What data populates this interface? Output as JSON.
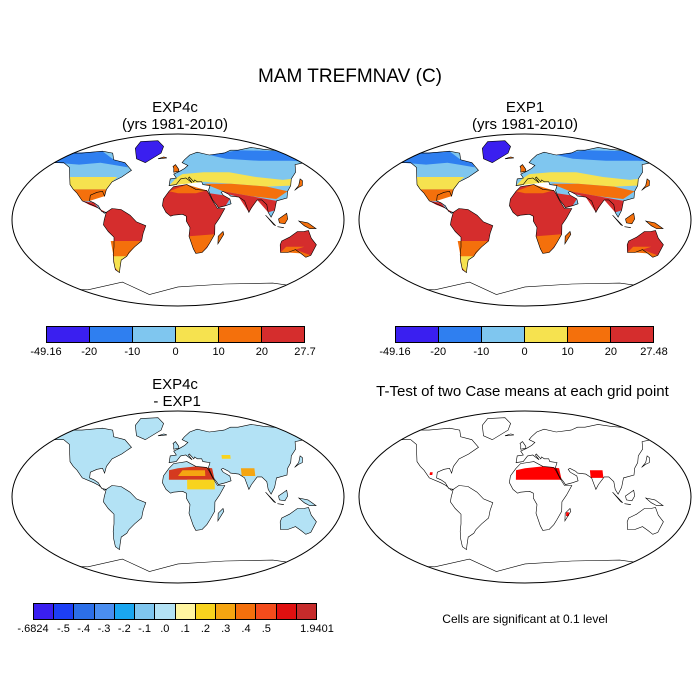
{
  "figure": {
    "main_title": "MAM TREFMNAV (C)",
    "panels": [
      {
        "id": "exp4c",
        "title_line1": "EXP4c",
        "title_line2": "(yrs 1981-2010)"
      },
      {
        "id": "exp1",
        "title_line1": "EXP1",
        "title_line2": "(yrs 1981-2010)"
      },
      {
        "id": "diff",
        "title_line1": "EXP4c",
        "title_line2": " - EXP1"
      },
      {
        "id": "ttest",
        "title_line1": "T-Test of two Case means at each grid point"
      }
    ],
    "colorbars": [
      {
        "panel": "exp4c",
        "labels": [
          "-49.16",
          "-20",
          "-10",
          "0",
          "10",
          "20",
          "27.7"
        ],
        "colors": [
          "#3a1ff0",
          "#2f7ff0",
          "#7fc6ef",
          "#f6e24f",
          "#f4700c",
          "#d52d2d"
        ]
      },
      {
        "panel": "exp1",
        "labels": [
          "-49.16",
          "-20",
          "-10",
          "0",
          "10",
          "20",
          "27.48"
        ],
        "colors": [
          "#3a1ff0",
          "#2f7ff0",
          "#7fc6ef",
          "#f6e24f",
          "#f4700c",
          "#d52d2d"
        ]
      },
      {
        "panel": "diff",
        "labels": [
          ".6824",
          "-.5",
          "-.4",
          "-.3",
          "-.2",
          "-.1",
          ".0",
          ".1",
          ".2",
          ".3",
          ".4",
          ".5",
          "1.9401"
        ],
        "label_prefix_first": "-",
        "colors": [
          "#3a1ff0",
          "#1d3ff5",
          "#2c6fe8",
          "#4a8ef0",
          "#1aa6f0",
          "#7fc6ef",
          "#b3e2f5",
          "#fff5a0",
          "#f8d31e",
          "#f5a511",
          "#f4700c",
          "#f44c1c",
          "#e01010",
          "#c62b2b"
        ]
      }
    ],
    "significance_note": "Cells are significant at 0.1 level"
  }
}
